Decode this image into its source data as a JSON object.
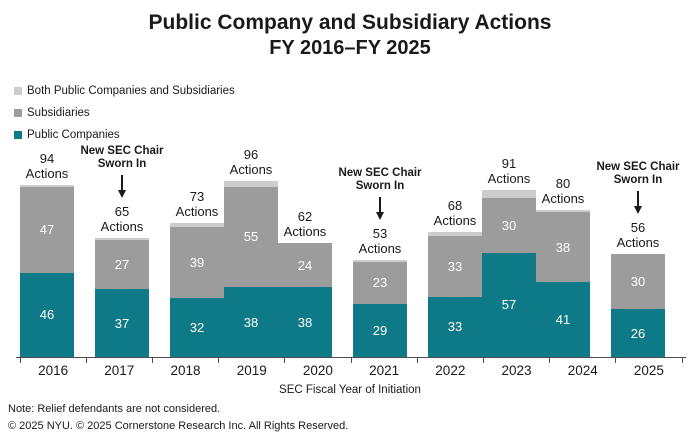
{
  "chart_data": {
    "type": "bar",
    "variant": "stacked",
    "title": "Public Company and Subsidiary Actions",
    "subtitle": "FY 2016–FY 2025",
    "xlabel": "SEC Fiscal Year of Initiation",
    "categories": [
      "2016",
      "2017",
      "2018",
      "2019",
      "2020",
      "2021",
      "2022",
      "2023",
      "2024",
      "2025"
    ],
    "series": [
      {
        "name": "Public Companies",
        "color": "#0e7a87",
        "values": [
          46,
          37,
          32,
          38,
          38,
          29,
          33,
          57,
          41,
          26
        ],
        "show_labels": true
      },
      {
        "name": "Subsidiaries",
        "color": "#9c9c9c",
        "values": [
          47,
          27,
          39,
          55,
          24,
          23,
          33,
          30,
          38,
          30
        ],
        "show_labels": true
      },
      {
        "name": "Both Public Companies and Subsidiaries",
        "color": "#cccccc",
        "values": [
          1,
          1,
          2,
          3,
          0,
          1,
          2,
          4,
          1,
          0
        ],
        "show_labels": false
      }
    ],
    "totals": [
      94,
      65,
      73,
      96,
      62,
      53,
      68,
      91,
      80,
      56
    ],
    "total_label_suffix": "Actions",
    "ylim": [
      0,
      96
    ],
    "grid": false,
    "legend_position": "top-left",
    "annotations": [
      {
        "category": "2017",
        "text": "New SEC Chair\nSworn In"
      },
      {
        "category": "2021",
        "text": "New SEC Chair\nSworn In"
      },
      {
        "category": "2025",
        "text": "New SEC Chair\nSworn In"
      }
    ]
  },
  "legend": {
    "items": [
      {
        "label": "Both Public Companies and Subsidiaries",
        "color": "#cccccc"
      },
      {
        "label": "Subsidiaries",
        "color": "#9c9c9c"
      },
      {
        "label": "Public Companies",
        "color": "#0e7a87"
      }
    ]
  },
  "notes": {
    "note": "Note: Relief defendants are not considered.",
    "copyright": "© 2025 NYU. © 2025 Cornerstone Research Inc. All Rights Reserved."
  },
  "colors": {
    "teal": "#0e7a87",
    "gray": "#9c9c9c",
    "light_gray": "#cccccc",
    "axis": "#4d4d4d",
    "text": "#1a1a1a"
  }
}
